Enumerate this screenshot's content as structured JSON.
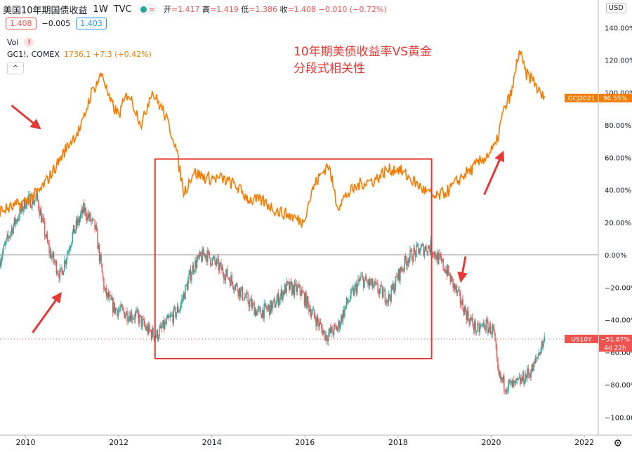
{
  "header": {
    "symbol": "美国10年期国债收益",
    "interval": "1W",
    "source": "TVC",
    "wave_glyph": "≈",
    "ohlc": {
      "open_label": "开",
      "open": "=1.417",
      "high_label": "高",
      "high": "=1.419",
      "low_label": "低",
      "low": "=1.386",
      "close_label": "收",
      "close": "=1.408",
      "change": "−0.010 (−0.72%)"
    }
  },
  "quote": {
    "bid": "1.408",
    "spread": "−0.005",
    "ask": "1.403"
  },
  "volume": {
    "label": "Vol",
    "warning_icon": "!"
  },
  "gold_legend": {
    "label": "GC1!, COMEX",
    "values": "1736.1 +7.3 (+0.42%)"
  },
  "collapse_glyph": "^",
  "annotation": {
    "line1": "10年期美债收益率VS黄金",
    "line2": "分段式相关性"
  },
  "axis": {
    "currency_button": "USD",
    "settings_icon": "⚙",
    "x_ticks": [
      "2010",
      "2012",
      "2014",
      "2016",
      "2018",
      "2020",
      "2022"
    ],
    "y_ticks": [
      "140.00%",
      "120.00%",
      "100.00%",
      "80.00%",
      "60.00%",
      "40.00%",
      "20.00%",
      "0.00%",
      "−20.00%",
      "−40.00%",
      "−60.00%",
      "−80.00%",
      "−100.00%"
    ]
  },
  "badges": {
    "gold": {
      "symbol": "GCJ2021",
      "value": "96.55%"
    },
    "us10y": {
      "symbol": "US10Y",
      "value": "−51.87%",
      "countdown": "4d 22h"
    }
  },
  "colors": {
    "gold": "#f57c00",
    "up": "#26a69a",
    "down": "#ef5350",
    "annotation": "#e53935",
    "grid": "#e0e3eb"
  },
  "chart_data": {
    "type": "line",
    "title": "10年期美债收益率VS黄金 分段式相关性",
    "xlim": [
      2009.45,
      2022.3
    ],
    "ylim": [
      -104,
      150
    ],
    "series": [
      {
        "name": "GCJ2021",
        "color": "#f57c00",
        "x": [
          2009.45,
          2009.7,
          2010.0,
          2010.3,
          2010.6,
          2010.9,
          2011.2,
          2011.4,
          2011.65,
          2011.8,
          2012.0,
          2012.2,
          2012.5,
          2012.7,
          2012.95,
          2013.2,
          2013.4,
          2013.6,
          2013.9,
          2014.2,
          2014.5,
          2014.8,
          2015.1,
          2015.4,
          2015.7,
          2015.95,
          2016.2,
          2016.5,
          2016.7,
          2016.9,
          2017.2,
          2017.5,
          2017.75,
          2018.0,
          2018.3,
          2018.55,
          2018.8,
          2019.1,
          2019.4,
          2019.6,
          2019.9,
          2020.1,
          2020.25,
          2020.45,
          2020.6,
          2020.75,
          2020.9,
          2021.05,
          2021.15
        ],
        "values": [
          27,
          29,
          33,
          39,
          52,
          67,
          79,
          99,
          112,
          95,
          86,
          100,
          80,
          101,
          89,
          70,
          38,
          51,
          47,
          47,
          43,
          34,
          33,
          27,
          24,
          20,
          43,
          56,
          30,
          37,
          44,
          46,
          52,
          53,
          46,
          40,
          35,
          40,
          49,
          53,
          61,
          67,
          87,
          101,
          126,
          111,
          108,
          99,
          96.55
        ]
      },
      {
        "name": "US10Y",
        "color": "#26a69a",
        "x": [
          2009.45,
          2009.7,
          2010.0,
          2010.25,
          2010.5,
          2010.75,
          2011.0,
          2011.25,
          2011.5,
          2011.7,
          2011.9,
          2012.15,
          2012.4,
          2012.6,
          2012.8,
          2013.0,
          2013.3,
          2013.6,
          2013.85,
          2014.1,
          2014.4,
          2014.7,
          2015.0,
          2015.3,
          2015.6,
          2015.9,
          2016.2,
          2016.45,
          2016.7,
          2016.9,
          2017.2,
          2017.5,
          2017.8,
          2018.0,
          2018.2,
          2018.45,
          2018.7,
          2018.85,
          2019.05,
          2019.3,
          2019.5,
          2019.7,
          2019.85,
          2020.05,
          2020.15,
          2020.3,
          2020.5,
          2020.7,
          2020.9,
          2021.05,
          2021.15
        ],
        "values": [
          -3,
          16,
          33,
          34,
          3,
          -13,
          12,
          28,
          16,
          -23,
          -33,
          -36,
          -38,
          -46,
          -50,
          -43,
          -33,
          -7,
          1,
          -6,
          -15,
          -26,
          -36,
          -32,
          -20,
          -22,
          -38,
          -50,
          -45,
          -30,
          -15,
          -20,
          -27,
          -13,
          -2,
          3,
          5,
          -2,
          -10,
          -26,
          -38,
          -47,
          -43,
          -47,
          -75,
          -80,
          -81,
          -76,
          -70,
          -58,
          -51.87
        ]
      }
    ]
  }
}
